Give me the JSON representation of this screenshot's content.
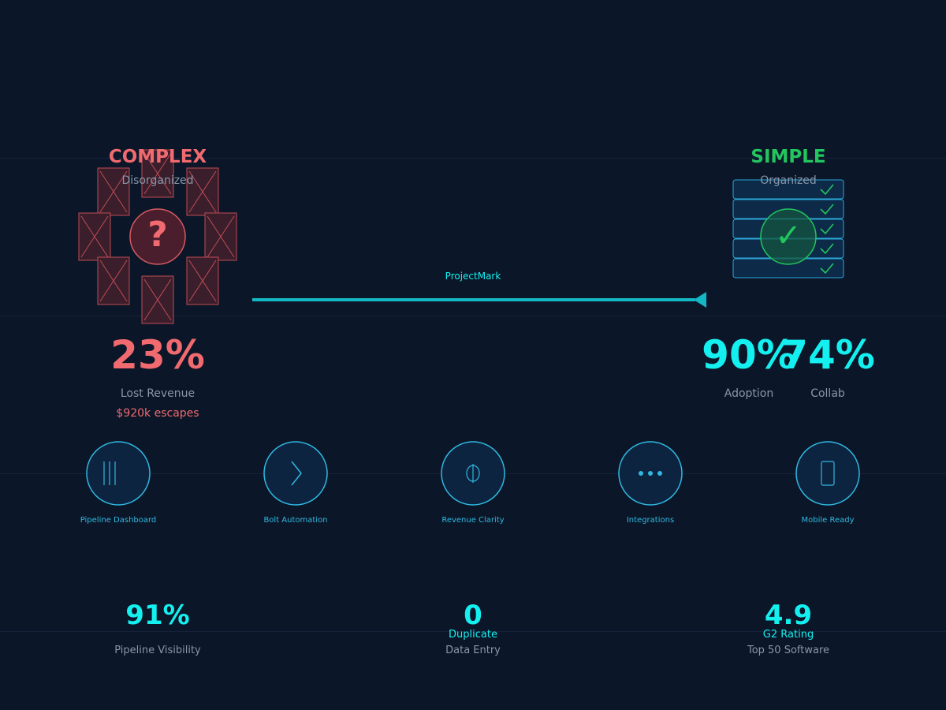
{
  "colors": {
    "background": "#0b1628",
    "complex": "#f06a6f",
    "simple": "#22c55e",
    "accent": "#14f0f0",
    "muted": "#8a97a8",
    "feature": "#2fb8e0"
  },
  "complex": {
    "title": "COMPLEX",
    "subtitle": "Disorganized",
    "center_symbol": "?",
    "stat_value": "23%",
    "stat_label": "Lost Revenue",
    "stat_note": "$920k escapes"
  },
  "simple": {
    "title": "SIMPLE",
    "subtitle": "Organized",
    "center_symbol": "✓",
    "stats": [
      {
        "value": "90%",
        "label": "Adoption"
      },
      {
        "value": "74%",
        "label": "Collab"
      }
    ]
  },
  "arrow": {
    "label": "ProjectMark"
  },
  "features": [
    {
      "label": "Pipeline Dashboard",
      "icon": "pipeline-bars-icon"
    },
    {
      "label": "Bolt Automation",
      "icon": "bolt-icon"
    },
    {
      "label": "Revenue Clarity",
      "icon": "coin-icon"
    },
    {
      "label": "Integrations",
      "icon": "dots-icon"
    },
    {
      "label": "Mobile Ready",
      "icon": "phone-icon"
    }
  ],
  "metrics": [
    {
      "value": "91%",
      "sub": "",
      "label": "Pipeline Visibility"
    },
    {
      "value": "0",
      "sub": "Duplicate",
      "label": "Data Entry"
    },
    {
      "value": "4.9",
      "sub": "G2 Rating",
      "label": "Top 50 Software"
    }
  ]
}
